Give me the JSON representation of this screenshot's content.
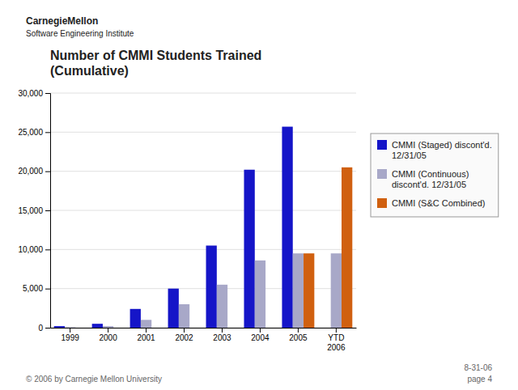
{
  "chart_data": {
    "type": "bar",
    "title": "Number of CMMI Students Trained\n(Cumulative)",
    "annotations": [
      "CarnegieMellon",
      "Software Engineering Institute",
      "© 2006 by Carnegie Mellon University",
      "8-31-06",
      "page 4"
    ],
    "categories": [
      "1999",
      "2000",
      "2001",
      "2002",
      "2003",
      "2004",
      "2005",
      "YTD\n2006"
    ],
    "series": [
      {
        "name": "CMMI (Staged) discont'd.\n12/31/05",
        "color": "#1515C8",
        "values": [
          200,
          500,
          2400,
          5000,
          10500,
          20200,
          25700,
          0
        ]
      },
      {
        "name": "CMMI (Continuous)\ndiscont'd. 12/31/05",
        "color": "#A8A8C8",
        "values": [
          50,
          200,
          1000,
          3000,
          5500,
          8600,
          9500,
          9500
        ]
      },
      {
        "name": "CMMI (S&C Combined)",
        "color": "#D06010",
        "values": [
          0,
          0,
          0,
          0,
          0,
          0,
          9500,
          20500
        ]
      }
    ],
    "ylim": [
      0,
      30000
    ],
    "yticks": [
      0,
      {
        "value": 5000,
        "label": "5,000"
      },
      {
        "value": 10000,
        "label": "10,000"
      },
      {
        "value": 15000,
        "label": "15,000"
      },
      {
        "value": 20000,
        "label": "20,000"
      },
      {
        "value": 25000,
        "label": "25,000"
      },
      {
        "value": 30000,
        "label": "30,000"
      }
    ],
    "grid": true,
    "legend": "right"
  }
}
